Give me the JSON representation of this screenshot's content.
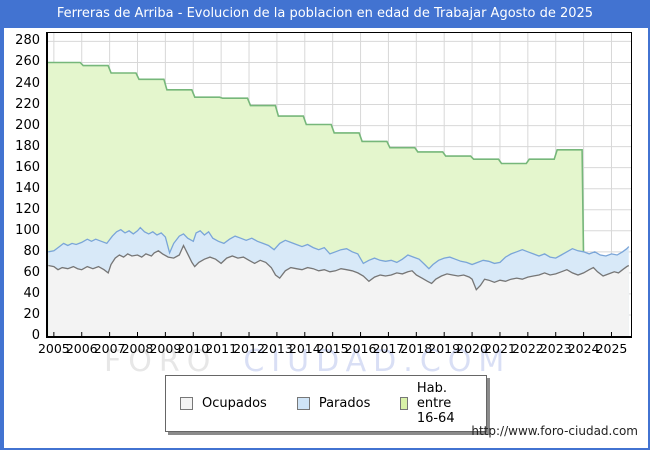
{
  "title_bar": {
    "text": "Ferreras de Arriba - Evolucion de la poblacion en edad de Trabajar Agosto de 2025",
    "bg_color": "#4273d1",
    "text_color": "#ffffff"
  },
  "watermark": {
    "part1": "FORO",
    "part2": "CIUDAD.COM"
  },
  "footer": {
    "url": "http://www.foro-ciudad.com"
  },
  "legend": {
    "items": [
      {
        "label": "Ocupados",
        "fill": "#f3f3f3",
        "border": "#777777"
      },
      {
        "label": "Parados",
        "fill": "#cfe4f7",
        "border": "#777777"
      },
      {
        "label": "Hab. entre 16-64",
        "fill": "#d9f2a8",
        "border": "#777777"
      }
    ]
  },
  "chart_data": {
    "type": "area",
    "title": "Ferreras de Arriba - Evolucion de la poblacion en edad de Trabajar Agosto de 2025",
    "xlabel": "",
    "ylabel": "",
    "grid": true,
    "grid_color": "#d8d8d8",
    "legend_position": "bottom",
    "x_axis": {
      "range": [
        2004.79,
        2025.7
      ],
      "ticks": [
        2005,
        2006,
        2007,
        2008,
        2009,
        2010,
        2011,
        2012,
        2013,
        2014,
        2015,
        2016,
        2017,
        2018,
        2019,
        2020,
        2021,
        2022,
        2023,
        2024,
        2025
      ]
    },
    "y_axis": {
      "range": [
        0,
        288
      ],
      "ticks": [
        0,
        20,
        40,
        60,
        80,
        100,
        120,
        140,
        160,
        180,
        200,
        220,
        240,
        260,
        280
      ]
    },
    "stacking_note": "Parados points are the stacked top line (Ocupados + Parados); Hab. entre 16-64 is a yearly step series ending January 2024",
    "series": [
      {
        "name": "Hab. entre 16-64",
        "style": "step-area",
        "line_color": "#76b77a",
        "fill_color": "#e4f6cd",
        "years": [
          2005,
          2006,
          2007,
          2008,
          2009,
          2010,
          2011,
          2012,
          2013,
          2014,
          2015,
          2016,
          2017,
          2018,
          2019,
          2020,
          2021,
          2022,
          2023
        ],
        "values": [
          260,
          257,
          250,
          244,
          234,
          227,
          226,
          219,
          209,
          201,
          193,
          185,
          179,
          175,
          171,
          168,
          164,
          168,
          177
        ],
        "end_year": 2024.0
      },
      {
        "name": "Parados",
        "style": "area",
        "line_color": "#7aa5d8",
        "fill_color": "#d8e9f8",
        "points": [
          [
            2004.8,
            80
          ],
          [
            2005.0,
            81
          ],
          [
            2005.2,
            85
          ],
          [
            2005.35,
            88
          ],
          [
            2005.5,
            86
          ],
          [
            2005.65,
            88
          ],
          [
            2005.8,
            87
          ],
          [
            2006.0,
            89
          ],
          [
            2006.2,
            92
          ],
          [
            2006.35,
            90
          ],
          [
            2006.5,
            92
          ],
          [
            2006.7,
            90
          ],
          [
            2006.9,
            88
          ],
          [
            2007.1,
            95
          ],
          [
            2007.25,
            99
          ],
          [
            2007.4,
            101
          ],
          [
            2007.55,
            98
          ],
          [
            2007.7,
            100
          ],
          [
            2007.85,
            97
          ],
          [
            2008.0,
            100
          ],
          [
            2008.1,
            103
          ],
          [
            2008.25,
            99
          ],
          [
            2008.4,
            97
          ],
          [
            2008.55,
            99
          ],
          [
            2008.7,
            96
          ],
          [
            2008.85,
            98
          ],
          [
            2009.0,
            94
          ],
          [
            2009.15,
            79
          ],
          [
            2009.3,
            88
          ],
          [
            2009.5,
            95
          ],
          [
            2009.65,
            97
          ],
          [
            2009.8,
            93
          ],
          [
            2010.0,
            90
          ],
          [
            2010.1,
            98
          ],
          [
            2010.25,
            100
          ],
          [
            2010.4,
            96
          ],
          [
            2010.55,
            99
          ],
          [
            2010.7,
            93
          ],
          [
            2010.9,
            90
          ],
          [
            2011.1,
            88
          ],
          [
            2011.3,
            92
          ],
          [
            2011.5,
            95
          ],
          [
            2011.7,
            93
          ],
          [
            2011.9,
            91
          ],
          [
            2012.1,
            93
          ],
          [
            2012.3,
            90
          ],
          [
            2012.5,
            88
          ],
          [
            2012.7,
            86
          ],
          [
            2012.9,
            82
          ],
          [
            2013.1,
            88
          ],
          [
            2013.3,
            91
          ],
          [
            2013.5,
            89
          ],
          [
            2013.7,
            87
          ],
          [
            2013.9,
            85
          ],
          [
            2014.1,
            87
          ],
          [
            2014.3,
            84
          ],
          [
            2014.5,
            82
          ],
          [
            2014.7,
            84
          ],
          [
            2014.9,
            78
          ],
          [
            2015.1,
            80
          ],
          [
            2015.3,
            82
          ],
          [
            2015.5,
            83
          ],
          [
            2015.7,
            80
          ],
          [
            2015.9,
            78
          ],
          [
            2016.1,
            69
          ],
          [
            2016.3,
            72
          ],
          [
            2016.5,
            74
          ],
          [
            2016.7,
            72
          ],
          [
            2016.9,
            71
          ],
          [
            2017.1,
            72
          ],
          [
            2017.3,
            70
          ],
          [
            2017.5,
            73
          ],
          [
            2017.7,
            77
          ],
          [
            2017.9,
            75
          ],
          [
            2018.1,
            73
          ],
          [
            2018.3,
            68
          ],
          [
            2018.45,
            64
          ],
          [
            2018.6,
            68
          ],
          [
            2018.8,
            72
          ],
          [
            2019.0,
            74
          ],
          [
            2019.2,
            75
          ],
          [
            2019.4,
            73
          ],
          [
            2019.6,
            71
          ],
          [
            2019.8,
            70
          ],
          [
            2020.0,
            68
          ],
          [
            2020.2,
            70
          ],
          [
            2020.4,
            72
          ],
          [
            2020.6,
            71
          ],
          [
            2020.8,
            69
          ],
          [
            2021.0,
            70
          ],
          [
            2021.2,
            75
          ],
          [
            2021.4,
            78
          ],
          [
            2021.6,
            80
          ],
          [
            2021.8,
            82
          ],
          [
            2022.0,
            80
          ],
          [
            2022.2,
            78
          ],
          [
            2022.4,
            76
          ],
          [
            2022.6,
            78
          ],
          [
            2022.8,
            75
          ],
          [
            2023.0,
            74
          ],
          [
            2023.2,
            77
          ],
          [
            2023.4,
            80
          ],
          [
            2023.6,
            83
          ],
          [
            2023.8,
            81
          ],
          [
            2024.0,
            80
          ],
          [
            2024.2,
            78
          ],
          [
            2024.4,
            80
          ],
          [
            2024.6,
            77
          ],
          [
            2024.8,
            76
          ],
          [
            2025.0,
            78
          ],
          [
            2025.2,
            77
          ],
          [
            2025.4,
            80
          ],
          [
            2025.55,
            83
          ],
          [
            2025.62,
            85
          ]
        ]
      },
      {
        "name": "Ocupados",
        "style": "area",
        "line_color": "#767676",
        "fill_color": "#f3f3f3",
        "points": [
          [
            2004.8,
            67
          ],
          [
            2005.0,
            66
          ],
          [
            2005.15,
            63
          ],
          [
            2005.3,
            65
          ],
          [
            2005.5,
            64
          ],
          [
            2005.7,
            66
          ],
          [
            2005.85,
            64
          ],
          [
            2006.0,
            63
          ],
          [
            2006.2,
            66
          ],
          [
            2006.4,
            64
          ],
          [
            2006.6,
            66
          ],
          [
            2006.8,
            63
          ],
          [
            2006.95,
            60
          ],
          [
            2007.05,
            68
          ],
          [
            2007.2,
            74
          ],
          [
            2007.35,
            77
          ],
          [
            2007.5,
            75
          ],
          [
            2007.65,
            78
          ],
          [
            2007.8,
            76
          ],
          [
            2008.0,
            77
          ],
          [
            2008.15,
            75
          ],
          [
            2008.3,
            78
          ],
          [
            2008.5,
            76
          ],
          [
            2008.6,
            79
          ],
          [
            2008.75,
            81
          ],
          [
            2008.9,
            78
          ],
          [
            2009.1,
            75
          ],
          [
            2009.3,
            74
          ],
          [
            2009.5,
            77
          ],
          [
            2009.65,
            86
          ],
          [
            2009.8,
            78
          ],
          [
            2009.95,
            70
          ],
          [
            2010.05,
            66
          ],
          [
            2010.2,
            70
          ],
          [
            2010.4,
            73
          ],
          [
            2010.6,
            75
          ],
          [
            2010.8,
            73
          ],
          [
            2011.0,
            69
          ],
          [
            2011.2,
            74
          ],
          [
            2011.4,
            76
          ],
          [
            2011.6,
            74
          ],
          [
            2011.8,
            75
          ],
          [
            2012.0,
            72
          ],
          [
            2012.2,
            69
          ],
          [
            2012.4,
            72
          ],
          [
            2012.6,
            70
          ],
          [
            2012.8,
            65
          ],
          [
            2012.95,
            58
          ],
          [
            2013.1,
            55
          ],
          [
            2013.3,
            62
          ],
          [
            2013.5,
            65
          ],
          [
            2013.7,
            64
          ],
          [
            2013.9,
            63
          ],
          [
            2014.1,
            65
          ],
          [
            2014.3,
            64
          ],
          [
            2014.5,
            62
          ],
          [
            2014.7,
            63
          ],
          [
            2014.9,
            61
          ],
          [
            2015.1,
            62
          ],
          [
            2015.3,
            64
          ],
          [
            2015.5,
            63
          ],
          [
            2015.7,
            62
          ],
          [
            2015.9,
            60
          ],
          [
            2016.1,
            57
          ],
          [
            2016.3,
            52
          ],
          [
            2016.5,
            56
          ],
          [
            2016.7,
            58
          ],
          [
            2016.9,
            57
          ],
          [
            2017.1,
            58
          ],
          [
            2017.3,
            60
          ],
          [
            2017.5,
            59
          ],
          [
            2017.7,
            61
          ],
          [
            2017.85,
            62
          ],
          [
            2018.0,
            58
          ],
          [
            2018.2,
            55
          ],
          [
            2018.4,
            52
          ],
          [
            2018.55,
            50
          ],
          [
            2018.7,
            54
          ],
          [
            2018.9,
            57
          ],
          [
            2019.1,
            59
          ],
          [
            2019.3,
            58
          ],
          [
            2019.5,
            57
          ],
          [
            2019.7,
            58
          ],
          [
            2019.9,
            56
          ],
          [
            2020.0,
            54
          ],
          [
            2020.15,
            44
          ],
          [
            2020.3,
            48
          ],
          [
            2020.45,
            54
          ],
          [
            2020.6,
            53
          ],
          [
            2020.8,
            51
          ],
          [
            2021.0,
            53
          ],
          [
            2021.2,
            52
          ],
          [
            2021.4,
            54
          ],
          [
            2021.6,
            55
          ],
          [
            2021.8,
            54
          ],
          [
            2022.0,
            56
          ],
          [
            2022.2,
            57
          ],
          [
            2022.4,
            58
          ],
          [
            2022.6,
            60
          ],
          [
            2022.8,
            58
          ],
          [
            2023.0,
            59
          ],
          [
            2023.2,
            61
          ],
          [
            2023.4,
            63
          ],
          [
            2023.6,
            60
          ],
          [
            2023.8,
            58
          ],
          [
            2024.0,
            60
          ],
          [
            2024.2,
            63
          ],
          [
            2024.35,
            65
          ],
          [
            2024.5,
            61
          ],
          [
            2024.7,
            57
          ],
          [
            2024.9,
            59
          ],
          [
            2025.1,
            61
          ],
          [
            2025.25,
            60
          ],
          [
            2025.4,
            63
          ],
          [
            2025.55,
            66
          ],
          [
            2025.62,
            67
          ]
        ]
      }
    ]
  }
}
